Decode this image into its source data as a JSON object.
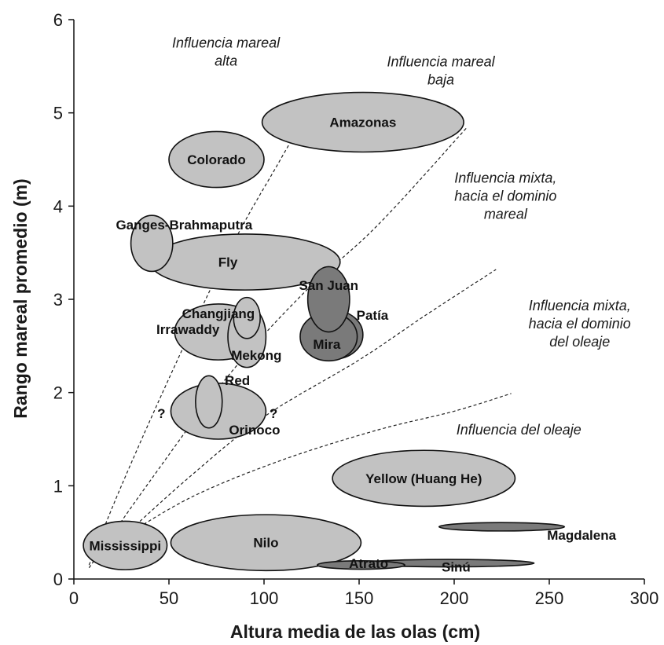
{
  "chart_data": {
    "type": "scatter",
    "xlabel": "Altura media de las olas (cm)",
    "ylabel": "Rango mareal promedio (m)",
    "xlim": [
      0,
      300
    ],
    "ylim": [
      0,
      6
    ],
    "x_ticks": [
      "0",
      "50",
      "100",
      "150",
      "200",
      "250",
      "300"
    ],
    "y_ticks": [
      "0",
      "1",
      "2",
      "3",
      "4",
      "5",
      "6"
    ],
    "grid": false,
    "colors": {
      "light": "#c2c2c2",
      "dark": "#7a7a7a",
      "stroke": "#111111",
      "boundary": "#222222"
    },
    "regions": [
      {
        "name": "Amazonas",
        "x": 152,
        "y": 4.9,
        "rx": 53,
        "ry": 0.32,
        "shade": "light"
      },
      {
        "name": "Colorado",
        "x": 75,
        "y": 4.5,
        "rx": 25,
        "ry": 0.3,
        "shade": "light"
      },
      {
        "name": "Fly",
        "x": 90,
        "y": 3.4,
        "rx": 50,
        "ry": 0.3,
        "shade": "light"
      },
      {
        "name": "Ganges-Brahmaputra",
        "x": 41,
        "y": 3.6,
        "rx": 11,
        "ry": 0.3,
        "shade": "light"
      },
      {
        "name": "Irrawaddy",
        "x": 76,
        "y": 2.65,
        "rx": 23,
        "ry": 0.3,
        "shade": "light"
      },
      {
        "name": "Mekong",
        "x": 91,
        "y": 2.6,
        "rx": 10,
        "ry": 0.33,
        "shade": "light"
      },
      {
        "name": "Changjiang",
        "x": 91,
        "y": 2.8,
        "rx": 7,
        "ry": 0.22,
        "shade": "light"
      },
      {
        "name": "Patía",
        "x": 137,
        "y": 2.62,
        "rx": 15,
        "ry": 0.26,
        "shade": "dark"
      },
      {
        "name": "Mira",
        "x": 134,
        "y": 2.6,
        "rx": 15,
        "ry": 0.26,
        "shade": "dark"
      },
      {
        "name": "San Juan",
        "x": 134,
        "y": 3.0,
        "rx": 11,
        "ry": 0.35,
        "shade": "dark"
      },
      {
        "name": "Orinoco",
        "x": 76,
        "y": 1.8,
        "rx": 25,
        "ry": 0.3,
        "shade": "light"
      },
      {
        "name": "Red",
        "x": 71,
        "y": 1.9,
        "rx": 7,
        "ry": 0.28,
        "shade": "light"
      },
      {
        "name": "Yellow (Huang He)",
        "x": 184,
        "y": 1.08,
        "rx": 48,
        "ry": 0.3,
        "shade": "light"
      },
      {
        "name": "Mississippi",
        "x": 27,
        "y": 0.36,
        "rx": 22,
        "ry": 0.26,
        "shade": "light"
      },
      {
        "name": "Nilo",
        "x": 101,
        "y": 0.39,
        "rx": 50,
        "ry": 0.3,
        "shade": "light"
      },
      {
        "name": "Magdalena",
        "x": 225,
        "y": 0.56,
        "rx": 33,
        "ry": 0.045,
        "shade": "dark"
      },
      {
        "name": "Sinú",
        "x": 197,
        "y": 0.17,
        "rx": 45,
        "ry": 0.04,
        "shade": "dark"
      },
      {
        "name": "Atrato",
        "x": 151,
        "y": 0.15,
        "rx": 23,
        "ry": 0.045,
        "shade": "dark"
      }
    ],
    "point_labels": [
      {
        "name": "Amazonas",
        "x": 152,
        "y": 4.9
      },
      {
        "name": "Colorado",
        "x": 75,
        "y": 4.5
      },
      {
        "name": "Ganges-Brahmaputra",
        "x": 58,
        "y": 3.8
      },
      {
        "name": "Fly",
        "x": 81,
        "y": 3.4
      },
      {
        "name": "San Juan",
        "x": 134,
        "y": 3.15
      },
      {
        "name": "Changjiang",
        "x": 76,
        "y": 2.85
      },
      {
        "name": "Irrawaddy",
        "x": 60,
        "y": 2.68
      },
      {
        "name": "Patía",
        "x": 157,
        "y": 2.83
      },
      {
        "name": "Mira",
        "x": 133,
        "y": 2.52
      },
      {
        "name": "Mekong",
        "x": 96,
        "y": 2.4
      },
      {
        "name": "Red",
        "x": 86,
        "y": 2.13
      },
      {
        "name": "Orinoco",
        "x": 95,
        "y": 1.6
      },
      {
        "name": "Yellow (Huang He)",
        "x": 184,
        "y": 1.08
      },
      {
        "name": "Mississippi",
        "x": 27,
        "y": 0.36
      },
      {
        "name": "Nilo",
        "x": 101,
        "y": 0.39
      },
      {
        "name": "Magdalena",
        "x": 267,
        "y": 0.47
      },
      {
        "name": "Sinú",
        "x": 201,
        "y": 0.13
      },
      {
        "name": "Atrato",
        "x": 155,
        "y": 0.17
      }
    ],
    "question_marks": [
      {
        "text": "?",
        "x": 46,
        "y": 1.78
      },
      {
        "text": "?",
        "x": 105,
        "y": 1.78
      }
    ],
    "boundaries": [
      {
        "points": [
          [
            8,
            0.15
          ],
          [
            25,
            1.0
          ],
          [
            50,
            2.15
          ],
          [
            80,
            3.45
          ],
          [
            103,
            4.3
          ],
          [
            127,
            5.07
          ],
          [
            148,
            5.22
          ]
        ]
      },
      {
        "points": [
          [
            8,
            0.12
          ],
          [
            40,
            1.05
          ],
          [
            80,
            2.15
          ],
          [
            120,
            3.05
          ],
          [
            160,
            3.8
          ],
          [
            207,
            4.85
          ]
        ]
      },
      {
        "points": [
          [
            22,
            0.38
          ],
          [
            60,
            1.08
          ],
          [
            100,
            1.74
          ],
          [
            150,
            2.35
          ],
          [
            185,
            2.83
          ],
          [
            222,
            3.32
          ]
        ]
      },
      {
        "points": [
          [
            22,
            0.4
          ],
          [
            62,
            0.88
          ],
          [
            110,
            1.28
          ],
          [
            160,
            1.6
          ],
          [
            200,
            1.8
          ],
          [
            230,
            1.99
          ]
        ]
      }
    ],
    "annotations": [
      {
        "lines": [
          "Influencia mareal",
          "alta"
        ],
        "x": 80,
        "y": 5.7
      },
      {
        "lines": [
          "Influencia mareal",
          "baja"
        ],
        "x": 193,
        "y": 5.5
      },
      {
        "lines": [
          "Influencia mixta,",
          "hacia el dominio",
          "mareal"
        ],
        "x": 227,
        "y": 4.25
      },
      {
        "lines": [
          "Influencia mixta,",
          "hacia el dominio",
          "del oleaje"
        ],
        "x": 266,
        "y": 2.88
      },
      {
        "lines": [
          "Influencia del oleaje"
        ],
        "x": 234,
        "y": 1.55
      }
    ]
  }
}
